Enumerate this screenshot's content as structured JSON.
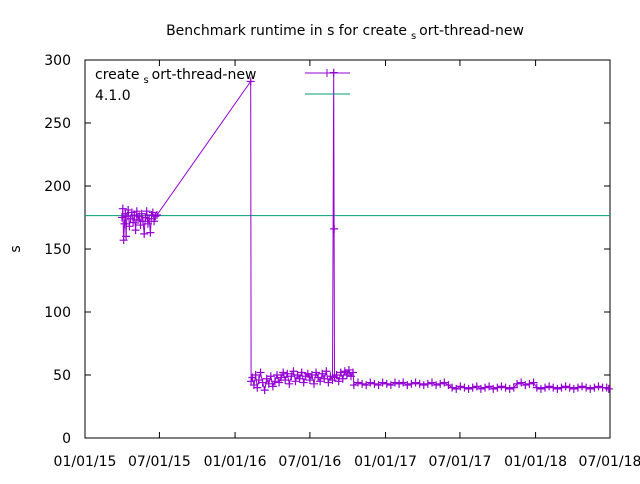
{
  "chart_data": {
    "type": "line",
    "title": {
      "main": "Benchmark runtime in s for create",
      "sub": "s",
      "rest": "ort-thread-new"
    },
    "xlabel": "",
    "ylabel": "s",
    "ylim": [
      0,
      300
    ],
    "xlim": [
      "2015-01-01",
      "2018-07-01"
    ],
    "yticks": [
      0,
      50,
      100,
      150,
      200,
      250,
      300
    ],
    "xticks": [
      {
        "date": "2015-01-01",
        "label": "01/01/15"
      },
      {
        "date": "2015-07-01",
        "label": "07/01/15"
      },
      {
        "date": "2016-01-01",
        "label": "01/01/16"
      },
      {
        "date": "2016-07-01",
        "label": "07/01/16"
      },
      {
        "date": "2017-01-01",
        "label": "01/01/17"
      },
      {
        "date": "2017-07-01",
        "label": "07/01/17"
      },
      {
        "date": "2018-01-01",
        "label": "01/01/18"
      },
      {
        "date": "2018-07-01",
        "label": "07/01/18"
      }
    ],
    "legend_position": "top-left",
    "series": [
      {
        "name": {
          "main": "create",
          "sub": "s",
          "rest": "ort-thread-new"
        },
        "color": "#9400d3",
        "style": "linespoints",
        "points": [
          [
            "2015-04-01",
            175
          ],
          [
            "2015-04-03",
            182
          ],
          [
            "2015-04-05",
            157
          ],
          [
            "2015-04-07",
            170
          ],
          [
            "2015-04-09",
            178
          ],
          [
            "2015-04-11",
            160
          ],
          [
            "2015-04-13",
            176
          ],
          [
            "2015-04-16",
            181
          ],
          [
            "2015-04-19",
            168
          ],
          [
            "2015-04-22",
            174
          ],
          [
            "2015-04-25",
            179
          ],
          [
            "2015-04-28",
            171
          ],
          [
            "2015-05-01",
            177
          ],
          [
            "2015-05-04",
            165
          ],
          [
            "2015-05-07",
            180
          ],
          [
            "2015-05-10",
            173
          ],
          [
            "2015-05-13",
            176
          ],
          [
            "2015-05-16",
            169
          ],
          [
            "2015-05-19",
            178
          ],
          [
            "2015-05-22",
            172
          ],
          [
            "2015-05-25",
            162
          ],
          [
            "2015-05-28",
            175
          ],
          [
            "2015-05-31",
            180
          ],
          [
            "2015-06-03",
            170
          ],
          [
            "2015-06-06",
            174
          ],
          [
            "2015-06-09",
            163
          ],
          [
            "2015-06-12",
            177
          ],
          [
            "2015-06-15",
            179
          ],
          [
            "2015-06-18",
            172
          ],
          [
            "2015-06-21",
            176
          ],
          [
            "2015-06-25",
            177
          ],
          [
            "2016-02-08",
            283
          ],
          [
            "2016-02-09",
            45
          ],
          [
            "2016-02-12",
            48
          ],
          [
            "2016-02-16",
            42
          ],
          [
            "2016-02-20",
            50
          ],
          [
            "2016-02-24",
            40
          ],
          [
            "2016-02-28",
            46
          ],
          [
            "2016-03-03",
            52
          ],
          [
            "2016-03-08",
            44
          ],
          [
            "2016-03-13",
            38
          ],
          [
            "2016-03-18",
            47
          ],
          [
            "2016-03-23",
            43
          ],
          [
            "2016-03-28",
            49
          ],
          [
            "2016-04-02",
            41
          ],
          [
            "2016-04-07",
            45
          ],
          [
            "2016-04-12",
            50
          ],
          [
            "2016-04-17",
            44
          ],
          [
            "2016-04-22",
            48
          ],
          [
            "2016-04-27",
            52
          ],
          [
            "2016-05-02",
            46
          ],
          [
            "2016-05-07",
            51
          ],
          [
            "2016-05-12",
            43
          ],
          [
            "2016-05-17",
            49
          ],
          [
            "2016-05-22",
            53
          ],
          [
            "2016-05-27",
            45
          ],
          [
            "2016-06-01",
            50
          ],
          [
            "2016-06-06",
            47
          ],
          [
            "2016-06-11",
            52
          ],
          [
            "2016-06-16",
            44
          ],
          [
            "2016-06-21",
            49
          ],
          [
            "2016-06-26",
            51
          ],
          [
            "2016-07-01",
            46
          ],
          [
            "2016-07-06",
            50
          ],
          [
            "2016-07-11",
            43
          ],
          [
            "2016-07-16",
            52
          ],
          [
            "2016-07-21",
            48
          ],
          [
            "2016-07-26",
            45
          ],
          [
            "2016-07-31",
            51
          ],
          [
            "2016-08-05",
            47
          ],
          [
            "2016-08-10",
            53
          ],
          [
            "2016-08-15",
            44
          ],
          [
            "2016-08-20",
            49
          ],
          [
            "2016-08-25",
            46
          ],
          [
            "2016-08-28",
            290
          ],
          [
            "2016-08-29",
            166
          ],
          [
            "2016-08-30",
            48
          ],
          [
            "2016-09-04",
            50
          ],
          [
            "2016-09-09",
            45
          ],
          [
            "2016-09-14",
            52
          ],
          [
            "2016-09-19",
            47
          ],
          [
            "2016-09-24",
            53
          ],
          [
            "2016-09-29",
            50
          ],
          [
            "2016-10-04",
            54
          ],
          [
            "2016-10-09",
            49
          ],
          [
            "2016-10-14",
            52
          ],
          [
            "2016-10-16",
            42
          ],
          [
            "2016-10-26",
            44
          ],
          [
            "2016-11-05",
            43
          ],
          [
            "2016-11-15",
            42
          ],
          [
            "2016-11-25",
            44
          ],
          [
            "2016-12-05",
            43
          ],
          [
            "2016-12-15",
            42
          ],
          [
            "2016-12-25",
            44
          ],
          [
            "2017-01-04",
            43
          ],
          [
            "2017-01-14",
            42
          ],
          [
            "2017-01-24",
            44
          ],
          [
            "2017-02-03",
            43
          ],
          [
            "2017-02-13",
            44
          ],
          [
            "2017-02-23",
            42
          ],
          [
            "2017-03-05",
            43
          ],
          [
            "2017-03-15",
            44
          ],
          [
            "2017-03-25",
            43
          ],
          [
            "2017-04-04",
            42
          ],
          [
            "2017-04-14",
            43
          ],
          [
            "2017-04-24",
            44
          ],
          [
            "2017-05-04",
            42
          ],
          [
            "2017-05-14",
            43
          ],
          [
            "2017-05-24",
            44
          ],
          [
            "2017-06-03",
            42
          ],
          [
            "2017-06-12",
            40
          ],
          [
            "2017-06-22",
            39
          ],
          [
            "2017-07-02",
            41
          ],
          [
            "2017-07-12",
            40
          ],
          [
            "2017-07-22",
            39
          ],
          [
            "2017-08-01",
            40
          ],
          [
            "2017-08-11",
            41
          ],
          [
            "2017-08-21",
            39
          ],
          [
            "2017-08-31",
            40
          ],
          [
            "2017-09-10",
            41
          ],
          [
            "2017-09-20",
            39
          ],
          [
            "2017-09-30",
            40
          ],
          [
            "2017-10-10",
            41
          ],
          [
            "2017-10-20",
            40
          ],
          [
            "2017-10-30",
            39
          ],
          [
            "2017-11-09",
            40
          ],
          [
            "2017-11-17",
            43
          ],
          [
            "2017-11-27",
            44
          ],
          [
            "2017-12-07",
            42
          ],
          [
            "2017-12-17",
            43
          ],
          [
            "2017-12-27",
            44
          ],
          [
            "2018-01-04",
            40
          ],
          [
            "2018-01-14",
            39
          ],
          [
            "2018-01-24",
            40
          ],
          [
            "2018-02-03",
            41
          ],
          [
            "2018-02-13",
            40
          ],
          [
            "2018-02-23",
            39
          ],
          [
            "2018-03-05",
            40
          ],
          [
            "2018-03-15",
            41
          ],
          [
            "2018-03-25",
            40
          ],
          [
            "2018-04-04",
            39
          ],
          [
            "2018-04-14",
            40
          ],
          [
            "2018-04-24",
            41
          ],
          [
            "2018-05-04",
            40
          ],
          [
            "2018-05-14",
            39
          ],
          [
            "2018-05-24",
            40
          ],
          [
            "2018-06-03",
            41
          ],
          [
            "2018-06-13",
            40
          ],
          [
            "2018-06-23",
            40
          ],
          [
            "2018-06-28",
            39
          ]
        ]
      },
      {
        "name": "4.1.0",
        "color": "#009e73",
        "style": "hline",
        "value": 176.5
      }
    ]
  }
}
